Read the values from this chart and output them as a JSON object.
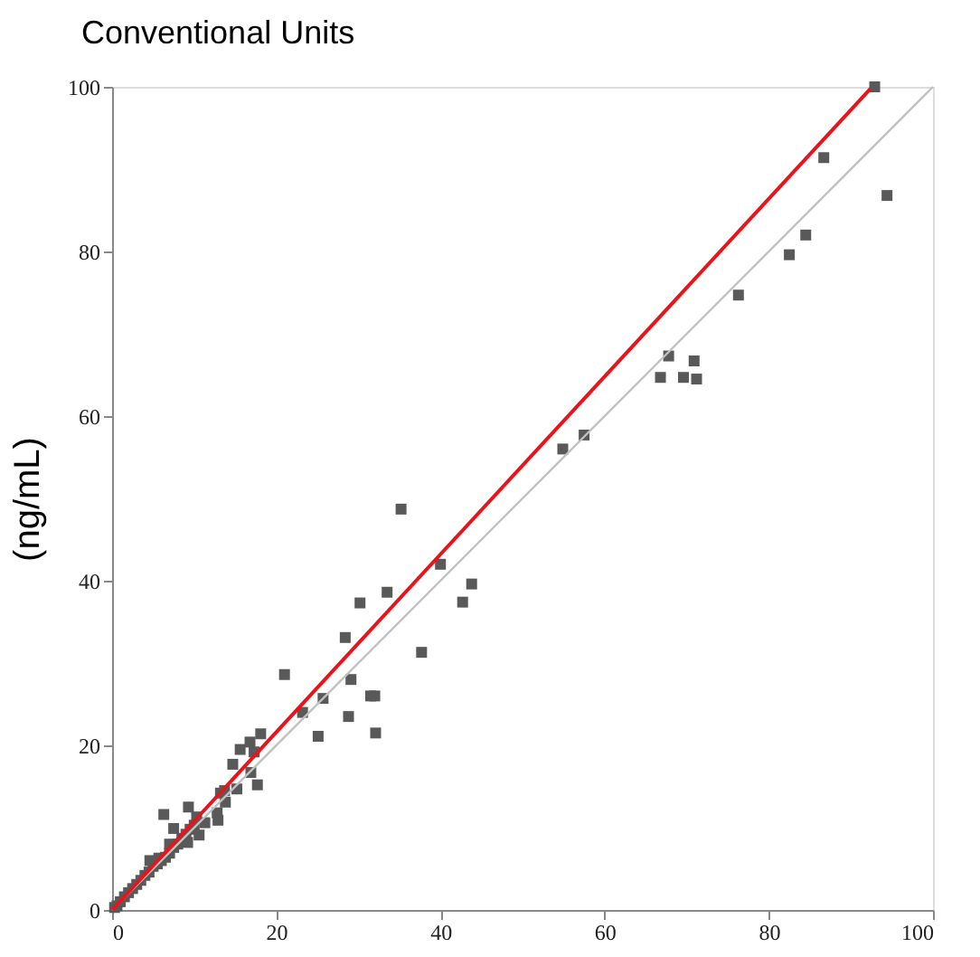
{
  "chart_data": {
    "type": "scatter",
    "title": "Conventional Units",
    "ylabel": "(ng/mL)",
    "xlim": [
      0,
      100
    ],
    "ylim": [
      0,
      100
    ],
    "xticks": [
      0,
      20,
      40,
      60,
      80,
      100
    ],
    "yticks": [
      0,
      20,
      40,
      60,
      80,
      100
    ],
    "grid": false,
    "series": [
      {
        "color": "#595959",
        "marker": "square",
        "x": [
          92.9,
          86.7,
          94.4,
          84.5,
          82.5,
          76.3,
          67.8,
          70.9,
          66.8,
          69.6,
          71.2,
          57.5,
          54.9,
          35.2,
          40.0,
          43.8,
          42.7,
          33.5,
          30.2,
          37.7,
          28.4,
          29.1,
          21.0,
          23.2,
          25.7,
          31.5,
          32.0,
          28.8,
          25.1,
          32.1,
          18.1,
          16.8,
          15.6,
          17.3,
          14.7,
          16.9,
          17.7,
          15.2,
          13.7,
          13.2,
          13.8,
          6.3,
          9.3,
          12.8,
          11.3,
          10.3,
          12.9,
          7.5,
          10.6,
          9.2,
          10.0,
          0.3,
          0.6,
          1.0,
          1.5,
          2.0,
          2.5,
          3.0,
          3.5,
          4.0,
          4.5,
          5.0,
          5.5,
          6.0,
          4.6,
          5.7,
          6.5,
          7.0,
          7.5,
          7.0,
          8.0,
          8.5,
          9.0,
          9.5
        ],
        "values": [
          100,
          91.4,
          86.8,
          82.0,
          79.6,
          74.7,
          67.3,
          66.7,
          64.7,
          64.7,
          64.5,
          57.7,
          56.0,
          48.7,
          42.0,
          39.6,
          37.4,
          38.6,
          37.3,
          31.3,
          33.1,
          28.0,
          28.6,
          24.0,
          25.7,
          26.0,
          26.0,
          23.5,
          21.1,
          21.5,
          21.4,
          20.4,
          19.5,
          19.2,
          17.7,
          16.7,
          15.2,
          14.7,
          14.5,
          14.2,
          13.1,
          11.6,
          12.5,
          11.8,
          10.6,
          11.3,
          10.9,
          9.9,
          9.1,
          8.2,
          10.3,
          0.3,
          0.5,
          1.0,
          1.6,
          2.1,
          2.6,
          3.1,
          3.6,
          4.2,
          4.6,
          5.3,
          5.6,
          6.0,
          6.0,
          6.3,
          6.4,
          6.9,
          7.6,
          8.0,
          8.0,
          8.7,
          9.2,
          9.8
        ]
      },
      {
        "type": "line",
        "color": "#c0c0c0",
        "line_style": "solid",
        "x": [
          0,
          100
        ],
        "values": [
          0,
          100
        ]
      },
      {
        "type": "line",
        "color": "#e8141b",
        "line_style": "solid",
        "x": [
          0,
          92.4
        ],
        "values": [
          0,
          99.8
        ]
      }
    ]
  }
}
